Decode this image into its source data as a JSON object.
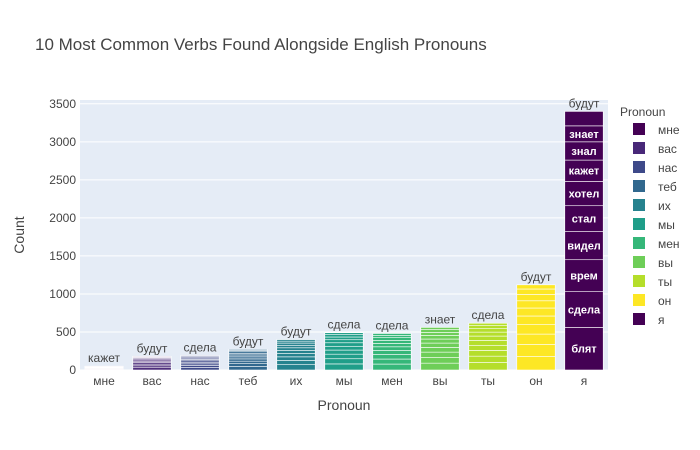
{
  "chart_data": {
    "type": "bar",
    "barmode": "stack",
    "title": "10 Most Common Verbs Found Alongside English Pronouns",
    "xlabel": "Pronoun",
    "ylabel": "Count",
    "ylim": [
      0,
      3550
    ],
    "yticks": [
      0,
      500,
      1000,
      1500,
      2000,
      2500,
      3000,
      3500
    ],
    "grid": true,
    "legend_title": "Pronoun",
    "legend_position": "right",
    "categories": [
      "мне",
      "вас",
      "нас",
      "теб",
      "их",
      "мы",
      "мен",
      "вы",
      "ты",
      "он",
      "я"
    ],
    "series": [
      {
        "name": "мне",
        "color": "#440154",
        "total": 50,
        "segments": [
          {
            "label": "кажет",
            "value": 5
          },
          {
            "label": "",
            "value": 5
          },
          {
            "label": "",
            "value": 5
          },
          {
            "label": "",
            "value": 5
          },
          {
            "label": "",
            "value": 5
          },
          {
            "label": "",
            "value": 5
          },
          {
            "label": "",
            "value": 5
          },
          {
            "label": "",
            "value": 5
          },
          {
            "label": "",
            "value": 5
          },
          {
            "label": "",
            "value": 5
          }
        ]
      },
      {
        "name": "вас",
        "color": "#482878",
        "total": 180,
        "segments": [
          {
            "label": "будут",
            "value": 30
          },
          {
            "label": "",
            "value": 25
          },
          {
            "label": "",
            "value": 22
          },
          {
            "label": "",
            "value": 20
          },
          {
            "label": "",
            "value": 18
          },
          {
            "label": "",
            "value": 17
          },
          {
            "label": "",
            "value": 15
          },
          {
            "label": "",
            "value": 13
          },
          {
            "label": "",
            "value": 11
          },
          {
            "label": "",
            "value": 9
          }
        ]
      },
      {
        "name": "нас",
        "color": "#3e4989",
        "total": 190,
        "segments": [
          {
            "label": "сдела",
            "value": 32
          },
          {
            "label": "",
            "value": 26
          },
          {
            "label": "",
            "value": 23
          },
          {
            "label": "",
            "value": 21
          },
          {
            "label": "",
            "value": 19
          },
          {
            "label": "",
            "value": 18
          },
          {
            "label": "",
            "value": 16
          },
          {
            "label": "",
            "value": 14
          },
          {
            "label": "",
            "value": 12
          },
          {
            "label": "",
            "value": 9
          }
        ]
      },
      {
        "name": "теб",
        "color": "#31688e",
        "total": 270,
        "segments": [
          {
            "label": "будут",
            "value": 45
          },
          {
            "label": "",
            "value": 38
          },
          {
            "label": "",
            "value": 33
          },
          {
            "label": "",
            "value": 30
          },
          {
            "label": "",
            "value": 27
          },
          {
            "label": "",
            "value": 25
          },
          {
            "label": "",
            "value": 22
          },
          {
            "label": "",
            "value": 20
          },
          {
            "label": "",
            "value": 17
          },
          {
            "label": "",
            "value": 13
          }
        ]
      },
      {
        "name": "их",
        "color": "#26828e",
        "total": 400,
        "segments": [
          {
            "label": "будут",
            "value": 70
          },
          {
            "label": "",
            "value": 55
          },
          {
            "label": "",
            "value": 48
          },
          {
            "label": "",
            "value": 43
          },
          {
            "label": "",
            "value": 40
          },
          {
            "label": "",
            "value": 36
          },
          {
            "label": "",
            "value": 33
          },
          {
            "label": "",
            "value": 29
          },
          {
            "label": "",
            "value": 25
          },
          {
            "label": "",
            "value": 21
          }
        ]
      },
      {
        "name": "мы",
        "color": "#1f9e89",
        "total": 490,
        "segments": [
          {
            "label": "сдела",
            "value": 80
          },
          {
            "label": "",
            "value": 68
          },
          {
            "label": "",
            "value": 60
          },
          {
            "label": "",
            "value": 54
          },
          {
            "label": "",
            "value": 50
          },
          {
            "label": "",
            "value": 46
          },
          {
            "label": "",
            "value": 40
          },
          {
            "label": "",
            "value": 36
          },
          {
            "label": "",
            "value": 31
          },
          {
            "label": "",
            "value": 25
          }
        ]
      },
      {
        "name": "мен",
        "color": "#35b779",
        "total": 480,
        "segments": [
          {
            "label": "сдела",
            "value": 78
          },
          {
            "label": "",
            "value": 66
          },
          {
            "label": "",
            "value": 59
          },
          {
            "label": "",
            "value": 53
          },
          {
            "label": "",
            "value": 49
          },
          {
            "label": "",
            "value": 45
          },
          {
            "label": "",
            "value": 40
          },
          {
            "label": "",
            "value": 35
          },
          {
            "label": "",
            "value": 31
          },
          {
            "label": "",
            "value": 24
          }
        ]
      },
      {
        "name": "вы",
        "color": "#6ece58",
        "total": 560,
        "segments": [
          {
            "label": "знает",
            "value": 90
          },
          {
            "label": "",
            "value": 77
          },
          {
            "label": "",
            "value": 68
          },
          {
            "label": "",
            "value": 62
          },
          {
            "label": "",
            "value": 57
          },
          {
            "label": "",
            "value": 53
          },
          {
            "label": "",
            "value": 47
          },
          {
            "label": "",
            "value": 41
          },
          {
            "label": "",
            "value": 36
          },
          {
            "label": "",
            "value": 29
          }
        ]
      },
      {
        "name": "ты",
        "color": "#b5de2b",
        "total": 615,
        "segments": [
          {
            "label": "сдела",
            "value": 98
          },
          {
            "label": "",
            "value": 84
          },
          {
            "label": "",
            "value": 75
          },
          {
            "label": "",
            "value": 68
          },
          {
            "label": "",
            "value": 63
          },
          {
            "label": "",
            "value": 58
          },
          {
            "label": "",
            "value": 52
          },
          {
            "label": "",
            "value": 45
          },
          {
            "label": "",
            "value": 40
          },
          {
            "label": "",
            "value": 32
          }
        ]
      },
      {
        "name": "он",
        "color": "#fde725",
        "total": 1120,
        "segments": [
          {
            "label": "будут",
            "value": 180
          },
          {
            "label": "",
            "value": 155
          },
          {
            "label": "",
            "value": 137
          },
          {
            "label": "",
            "value": 124
          },
          {
            "label": "",
            "value": 114
          },
          {
            "label": "",
            "value": 105
          },
          {
            "label": "",
            "value": 95
          },
          {
            "label": "",
            "value": 83
          },
          {
            "label": "",
            "value": 72
          },
          {
            "label": "",
            "value": 55
          }
        ]
      },
      {
        "name": "я",
        "color": "#440154",
        "total": 3400,
        "segments": [
          {
            "label": "блят",
            "value": 560
          },
          {
            "label": "сдела",
            "value": 470
          },
          {
            "label": "врем",
            "value": 420
          },
          {
            "label": "видел",
            "value": 370
          },
          {
            "label": "стал",
            "value": 340
          },
          {
            "label": "хотел",
            "value": 320
          },
          {
            "label": "кажет",
            "value": 280
          },
          {
            "label": "знал",
            "value": 240
          },
          {
            "label": "знает",
            "value": 210
          },
          {
            "label": "будут",
            "value": 190
          }
        ]
      }
    ]
  }
}
